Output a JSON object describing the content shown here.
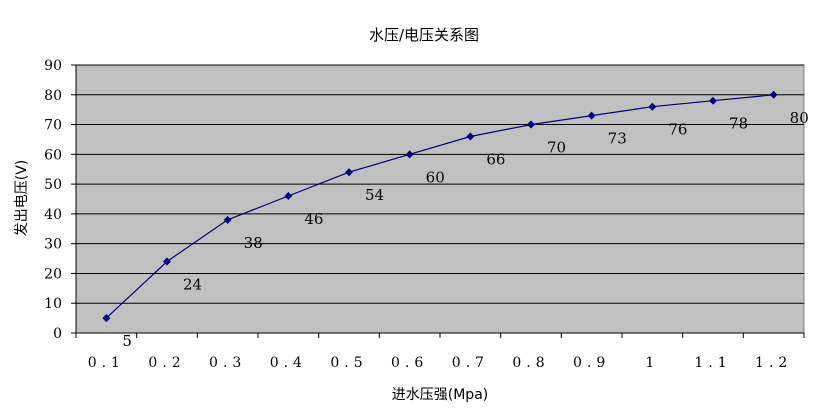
{
  "chart_data": {
    "type": "line",
    "title": "水压/电压关系图",
    "xlabel": "进水压强(Mpa)",
    "ylabel": "发出电压(V)",
    "categories": [
      "0.1",
      "0.2",
      "0.3",
      "0.4",
      "0.5",
      "0.6",
      "0.7",
      "0.8",
      "0.9",
      "1",
      "1.1",
      "1.2"
    ],
    "values": [
      5,
      24,
      38,
      46,
      54,
      60,
      66,
      70,
      73,
      76,
      78,
      80
    ],
    "data_labels": [
      "5",
      "24",
      "38",
      "46",
      "54",
      "60",
      "66",
      "70",
      "73",
      "76",
      "78",
      "80"
    ],
    "ylim": [
      0,
      90
    ],
    "yticks": [
      "0",
      "10",
      "20",
      "30",
      "40",
      "50",
      "60",
      "70",
      "80",
      "90"
    ],
    "grid": true,
    "legend": "none",
    "colors": {
      "plot_bg": "#c0c0c0",
      "line": "#000080",
      "marker": "#000080",
      "grid": "#000000"
    }
  }
}
